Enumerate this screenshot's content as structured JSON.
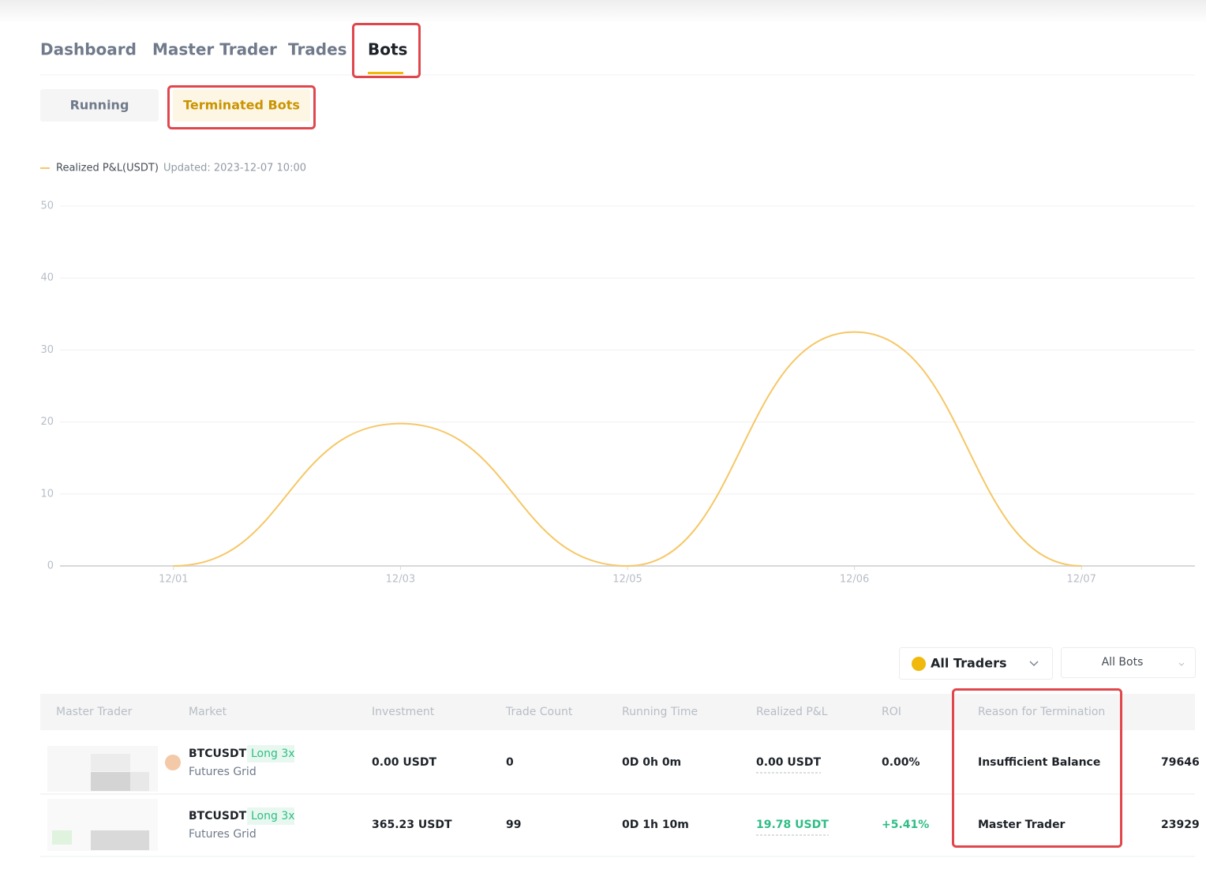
{
  "tabs": [
    "Dashboard",
    "Master Trader",
    "Trades",
    "Bots"
  ],
  "subtabs": [
    "Running",
    "Terminated Bots"
  ],
  "chart_data": {
    "type": "line",
    "series": [
      {
        "name": "Realized P&L(USDT)",
        "color": "#f6c766",
        "values": [
          0,
          19.78,
          0,
          32.5,
          0
        ]
      }
    ],
    "updated": "Updated: 2023-12-07 10:00",
    "categories": [
      "12/01",
      "12/03",
      "12/05",
      "12/06",
      "12/07"
    ],
    "ylim": [
      0,
      50
    ],
    "yticks": [
      0,
      10,
      20,
      30,
      40,
      50
    ],
    "grid": true
  },
  "filters": [
    "All Traders",
    "All Bots"
  ],
  "table": {
    "columns": [
      "Master Trader",
      "Market",
      "Investment",
      "Trade Count",
      "Running Time",
      "Realized P&L",
      "ROI",
      "Reason for Termination"
    ],
    "rows": [
      {
        "symbol": "BTCUSDT",
        "side": "Long 3x",
        "bot_type": "Futures Grid",
        "investment": "0.00 USDT",
        "trade_count": "0",
        "running_time": "0D 0h 0m",
        "realized_pnl": "0.00 USDT",
        "roi": "0.00%",
        "reason": "Insufficient Balance",
        "id": "79646",
        "pnl_color": "#1e2329"
      },
      {
        "symbol": "BTCUSDT",
        "side": "Long 3x",
        "bot_type": "Futures Grid",
        "investment": "365.23 USDT",
        "trade_count": "99",
        "running_time": "0D 1h 10m",
        "realized_pnl": "19.78 USDT",
        "roi": "+5.41%",
        "reason": "Master Trader",
        "id": "23929",
        "pnl_color": "#2ebd85"
      }
    ]
  }
}
